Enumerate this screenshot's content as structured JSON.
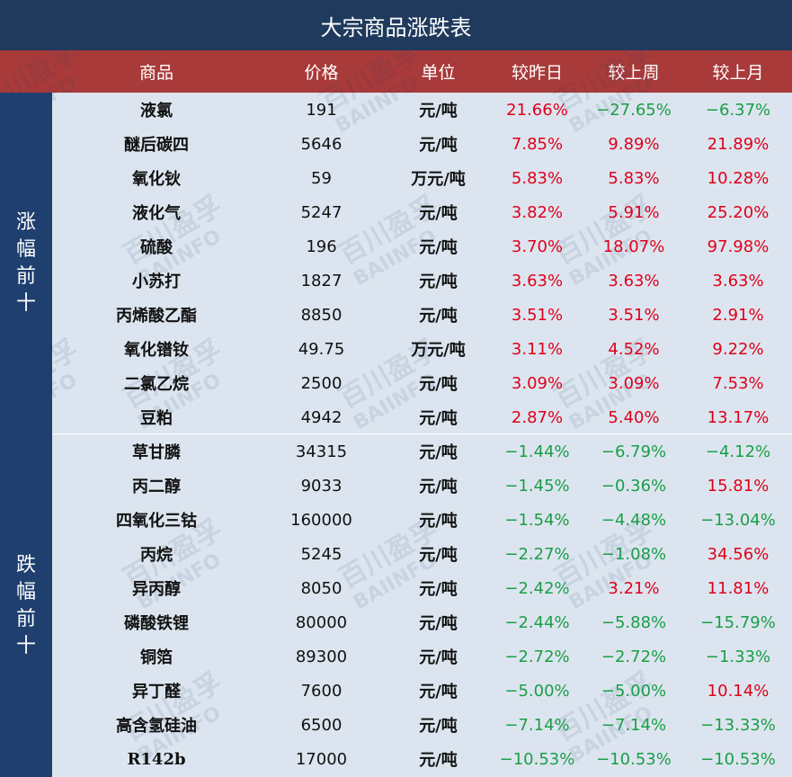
{
  "title": "大宗商品涨跌表",
  "headers": {
    "name": "商品",
    "price": "价格",
    "unit": "单位",
    "day": "较昨日",
    "week": "较上周",
    "month": "较上月"
  },
  "side_up": [
    "涨",
    "幅",
    "前",
    "十"
  ],
  "side_down": [
    "跌",
    "幅",
    "前",
    "十"
  ],
  "watermark": {
    "cn": "百川盈孚",
    "en": "BAIINFO"
  },
  "colors": {
    "title_bg": "#1f3a5c",
    "header_bg": "#a93a3a",
    "side_bg": "#1f3f6f",
    "body_bg": "#dce5ef",
    "up": "#e0001a",
    "down": "#1a9e46"
  },
  "rows": [
    {
      "name": "液氯",
      "price": "191",
      "unit": "元/吨",
      "day": "21.66%",
      "week": "-27.65%",
      "month": "-6.37%"
    },
    {
      "name": "醚后碳四",
      "price": "5646",
      "unit": "元/吨",
      "day": "7.85%",
      "week": "9.89%",
      "month": "21.89%"
    },
    {
      "name": "氧化钬",
      "price": "59",
      "unit": "万元/吨",
      "day": "5.83%",
      "week": "5.83%",
      "month": "10.28%"
    },
    {
      "name": "液化气",
      "price": "5247",
      "unit": "元/吨",
      "day": "3.82%",
      "week": "5.91%",
      "month": "25.20%"
    },
    {
      "name": "硫酸",
      "price": "196",
      "unit": "元/吨",
      "day": "3.70%",
      "week": "18.07%",
      "month": "97.98%"
    },
    {
      "name": "小苏打",
      "price": "1827",
      "unit": "元/吨",
      "day": "3.63%",
      "week": "3.63%",
      "month": "3.63%"
    },
    {
      "name": "丙烯酸乙酯",
      "price": "8850",
      "unit": "元/吨",
      "day": "3.51%",
      "week": "3.51%",
      "month": "2.91%"
    },
    {
      "name": "氧化镨钕",
      "price": "49.75",
      "unit": "万元/吨",
      "day": "3.11%",
      "week": "4.52%",
      "month": "9.22%"
    },
    {
      "name": "二氯乙烷",
      "price": "2500",
      "unit": "元/吨",
      "day": "3.09%",
      "week": "3.09%",
      "month": "7.53%"
    },
    {
      "name": "豆粕",
      "price": "4942",
      "unit": "元/吨",
      "day": "2.87%",
      "week": "5.40%",
      "month": "13.17%"
    },
    {
      "name": "草甘膦",
      "price": "34315",
      "unit": "元/吨",
      "day": "-1.44%",
      "week": "-6.79%",
      "month": "-4.12%"
    },
    {
      "name": "丙二醇",
      "price": "9033",
      "unit": "元/吨",
      "day": "-1.45%",
      "week": "-0.36%",
      "month": "15.81%"
    },
    {
      "name": "四氧化三钴",
      "price": "160000",
      "unit": "元/吨",
      "day": "-1.54%",
      "week": "-4.48%",
      "month": "-13.04%"
    },
    {
      "name": "丙烷",
      "price": "5245",
      "unit": "元/吨",
      "day": "-2.27%",
      "week": "-1.08%",
      "month": "34.56%"
    },
    {
      "name": "异丙醇",
      "price": "8050",
      "unit": "元/吨",
      "day": "-2.42%",
      "week": "3.21%",
      "month": "11.81%"
    },
    {
      "name": "磷酸铁锂",
      "price": "80000",
      "unit": "元/吨",
      "day": "-2.44%",
      "week": "-5.88%",
      "month": "-15.79%"
    },
    {
      "name": "铜箔",
      "price": "89300",
      "unit": "元/吨",
      "day": "-2.72%",
      "week": "-2.72%",
      "month": "-1.33%"
    },
    {
      "name": "异丁醛",
      "price": "7600",
      "unit": "元/吨",
      "day": "-5.00%",
      "week": "-5.00%",
      "month": "10.14%"
    },
    {
      "name": "高含氢硅油",
      "price": "6500",
      "unit": "元/吨",
      "day": "-7.14%",
      "week": "-7.14%",
      "month": "-13.33%"
    },
    {
      "name": "R142b",
      "price": "17000",
      "unit": "元/吨",
      "day": "-10.53%",
      "week": "-10.53%",
      "month": "-10.53%"
    }
  ]
}
